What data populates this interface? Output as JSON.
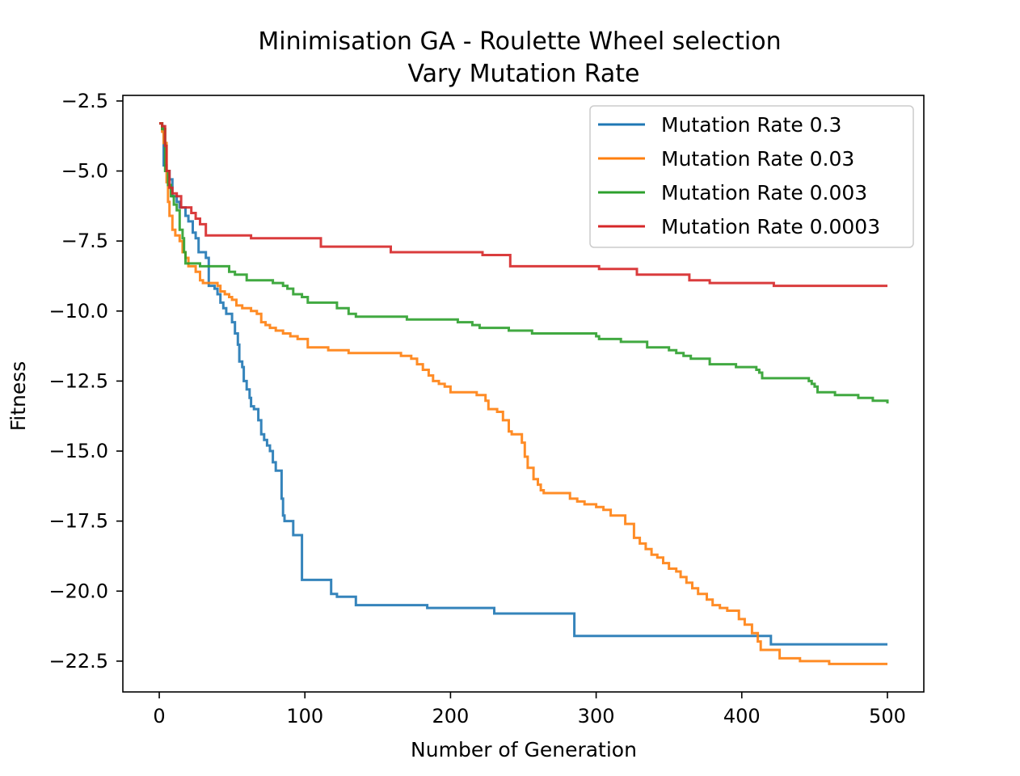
{
  "chart_data": {
    "type": "line",
    "title": "Minimisation GA - Roulette Wheel selection",
    "subtitle": "Vary Mutation Rate",
    "xlabel": "Number of Generation",
    "ylabel": "Fitness",
    "xlim": [
      -25,
      525
    ],
    "ylim": [
      -23.6,
      -2.3
    ],
    "xticks": [
      0,
      100,
      200,
      300,
      400,
      500
    ],
    "yticks": [
      -2.5,
      -5.0,
      -7.5,
      -10.0,
      -12.5,
      -15.0,
      -17.5,
      -20.0,
      -22.5
    ],
    "grid": false,
    "legend_position": "top-right",
    "series": [
      {
        "name": "Mutation Rate 0.3",
        "color": "#1f77b4",
        "points": [
          [
            0,
            -3.3
          ],
          [
            2,
            -3.4
          ],
          [
            3,
            -4.8
          ],
          [
            5,
            -5.0
          ],
          [
            7,
            -5.3
          ],
          [
            9,
            -5.9
          ],
          [
            12,
            -6.1
          ],
          [
            14,
            -6.3
          ],
          [
            18,
            -6.6
          ],
          [
            20,
            -6.8
          ],
          [
            23,
            -7.2
          ],
          [
            25,
            -7.4
          ],
          [
            27,
            -7.9
          ],
          [
            30,
            -7.9
          ],
          [
            32,
            -8.1
          ],
          [
            34,
            -9.1
          ],
          [
            38,
            -9.2
          ],
          [
            40,
            -9.4
          ],
          [
            42,
            -9.7
          ],
          [
            44,
            -9.9
          ],
          [
            46,
            -10.1
          ],
          [
            48,
            -10.1
          ],
          [
            50,
            -10.4
          ],
          [
            52,
            -10.8
          ],
          [
            54,
            -11.2
          ],
          [
            55,
            -11.8
          ],
          [
            57,
            -12.0
          ],
          [
            58,
            -12.5
          ],
          [
            60,
            -12.8
          ],
          [
            62,
            -13.1
          ],
          [
            63,
            -13.4
          ],
          [
            65,
            -13.5
          ],
          [
            68,
            -13.9
          ],
          [
            70,
            -14.4
          ],
          [
            72,
            -14.6
          ],
          [
            74,
            -14.8
          ],
          [
            76,
            -15.0
          ],
          [
            78,
            -15.4
          ],
          [
            80,
            -15.7
          ],
          [
            82,
            -15.7
          ],
          [
            84,
            -16.7
          ],
          [
            85,
            -17.3
          ],
          [
            86,
            -17.5
          ],
          [
            90,
            -17.5
          ],
          [
            92,
            -18.0
          ],
          [
            96,
            -18.0
          ],
          [
            98,
            -19.6
          ],
          [
            117,
            -19.6
          ],
          [
            118,
            -20.1
          ],
          [
            120,
            -20.1
          ],
          [
            122,
            -20.2
          ],
          [
            134,
            -20.2
          ],
          [
            135,
            -20.5
          ],
          [
            183,
            -20.5
          ],
          [
            184,
            -20.6
          ],
          [
            228,
            -20.6
          ],
          [
            230,
            -20.8
          ],
          [
            284,
            -20.8
          ],
          [
            285,
            -21.6
          ],
          [
            418,
            -21.6
          ],
          [
            420,
            -21.9
          ],
          [
            500,
            -21.9
          ]
        ]
      },
      {
        "name": "Mutation Rate 0.03",
        "color": "#ff7f0e",
        "points": [
          [
            0,
            -3.3
          ],
          [
            2,
            -3.6
          ],
          [
            3,
            -4.0
          ],
          [
            5,
            -5.4
          ],
          [
            6,
            -6.1
          ],
          [
            7,
            -6.6
          ],
          [
            9,
            -7.1
          ],
          [
            11,
            -7.3
          ],
          [
            14,
            -7.5
          ],
          [
            16,
            -7.9
          ],
          [
            18,
            -8.1
          ],
          [
            20,
            -8.4
          ],
          [
            23,
            -8.4
          ],
          [
            25,
            -8.6
          ],
          [
            28,
            -8.9
          ],
          [
            30,
            -9.0
          ],
          [
            36,
            -9.0
          ],
          [
            40,
            -9.1
          ],
          [
            42,
            -9.3
          ],
          [
            45,
            -9.4
          ],
          [
            48,
            -9.5
          ],
          [
            50,
            -9.6
          ],
          [
            53,
            -9.8
          ],
          [
            57,
            -9.9
          ],
          [
            63,
            -10.0
          ],
          [
            67,
            -10.1
          ],
          [
            70,
            -10.4
          ],
          [
            73,
            -10.5
          ],
          [
            76,
            -10.6
          ],
          [
            80,
            -10.7
          ],
          [
            85,
            -10.8
          ],
          [
            90,
            -10.9
          ],
          [
            95,
            -11.0
          ],
          [
            100,
            -11.0
          ],
          [
            102,
            -11.3
          ],
          [
            113,
            -11.3
          ],
          [
            116,
            -11.4
          ],
          [
            130,
            -11.5
          ],
          [
            162,
            -11.5
          ],
          [
            166,
            -11.6
          ],
          [
            173,
            -11.7
          ],
          [
            177,
            -11.9
          ],
          [
            181,
            -12.1
          ],
          [
            185,
            -12.3
          ],
          [
            188,
            -12.5
          ],
          [
            192,
            -12.6
          ],
          [
            196,
            -12.7
          ],
          [
            200,
            -12.9
          ],
          [
            205,
            -12.9
          ],
          [
            212,
            -12.9
          ],
          [
            218,
            -13.0
          ],
          [
            224,
            -13.2
          ],
          [
            226,
            -13.5
          ],
          [
            232,
            -13.6
          ],
          [
            236,
            -13.9
          ],
          [
            240,
            -14.3
          ],
          [
            242,
            -14.4
          ],
          [
            249,
            -14.7
          ],
          [
            251,
            -15.2
          ],
          [
            253,
            -15.6
          ],
          [
            257,
            -16.0
          ],
          [
            260,
            -16.2
          ],
          [
            262,
            -16.4
          ],
          [
            264,
            -16.5
          ],
          [
            267,
            -16.5
          ],
          [
            280,
            -16.5
          ],
          [
            282,
            -16.7
          ],
          [
            287,
            -16.8
          ],
          [
            292,
            -16.9
          ],
          [
            300,
            -17.0
          ],
          [
            305,
            -17.1
          ],
          [
            310,
            -17.3
          ],
          [
            320,
            -17.6
          ],
          [
            326,
            -18.1
          ],
          [
            330,
            -18.3
          ],
          [
            334,
            -18.5
          ],
          [
            338,
            -18.7
          ],
          [
            342,
            -18.8
          ],
          [
            346,
            -19.0
          ],
          [
            350,
            -19.2
          ],
          [
            355,
            -19.3
          ],
          [
            358,
            -19.5
          ],
          [
            362,
            -19.7
          ],
          [
            366,
            -19.9
          ],
          [
            370,
            -20.1
          ],
          [
            376,
            -20.3
          ],
          [
            380,
            -20.5
          ],
          [
            385,
            -20.6
          ],
          [
            390,
            -20.7
          ],
          [
            398,
            -21.0
          ],
          [
            402,
            -21.2
          ],
          [
            407,
            -21.5
          ],
          [
            411,
            -21.8
          ],
          [
            413,
            -22.1
          ],
          [
            424,
            -22.1
          ],
          [
            426,
            -22.4
          ],
          [
            440,
            -22.5
          ],
          [
            460,
            -22.6
          ],
          [
            500,
            -22.6
          ]
        ]
      },
      {
        "name": "Mutation Rate 0.003",
        "color": "#2ca02c",
        "points": [
          [
            0,
            -3.3
          ],
          [
            2,
            -3.5
          ],
          [
            4,
            -5.0
          ],
          [
            6,
            -5.5
          ],
          [
            8,
            -5.9
          ],
          [
            10,
            -6.2
          ],
          [
            12,
            -6.4
          ],
          [
            14,
            -7.1
          ],
          [
            16,
            -7.4
          ],
          [
            17,
            -7.9
          ],
          [
            18,
            -8.3
          ],
          [
            22,
            -8.3
          ],
          [
            28,
            -8.4
          ],
          [
            45,
            -8.4
          ],
          [
            48,
            -8.6
          ],
          [
            52,
            -8.7
          ],
          [
            55,
            -8.7
          ],
          [
            60,
            -8.9
          ],
          [
            72,
            -8.9
          ],
          [
            78,
            -9.0
          ],
          [
            85,
            -9.1
          ],
          [
            88,
            -9.2
          ],
          [
            92,
            -9.4
          ],
          [
            98,
            -9.5
          ],
          [
            102,
            -9.7
          ],
          [
            118,
            -9.7
          ],
          [
            122,
            -9.9
          ],
          [
            128,
            -9.9
          ],
          [
            130,
            -10.1
          ],
          [
            135,
            -10.2
          ],
          [
            165,
            -10.2
          ],
          [
            170,
            -10.3
          ],
          [
            200,
            -10.3
          ],
          [
            205,
            -10.4
          ],
          [
            215,
            -10.5
          ],
          [
            220,
            -10.6
          ],
          [
            238,
            -10.6
          ],
          [
            240,
            -10.7
          ],
          [
            252,
            -10.7
          ],
          [
            256,
            -10.8
          ],
          [
            292,
            -10.8
          ],
          [
            300,
            -10.9
          ],
          [
            302,
            -11.0
          ],
          [
            315,
            -11.0
          ],
          [
            317,
            -11.1
          ],
          [
            332,
            -11.1
          ],
          [
            335,
            -11.3
          ],
          [
            350,
            -11.4
          ],
          [
            355,
            -11.5
          ],
          [
            360,
            -11.6
          ],
          [
            365,
            -11.7
          ],
          [
            376,
            -11.7
          ],
          [
            378,
            -11.9
          ],
          [
            385,
            -11.9
          ],
          [
            394,
            -11.9
          ],
          [
            396,
            -12.0
          ],
          [
            402,
            -12.0
          ],
          [
            410,
            -12.1
          ],
          [
            412,
            -12.2
          ],
          [
            414,
            -12.4
          ],
          [
            440,
            -12.4
          ],
          [
            446,
            -12.5
          ],
          [
            448,
            -12.6
          ],
          [
            450,
            -12.7
          ],
          [
            452,
            -12.9
          ],
          [
            460,
            -12.9
          ],
          [
            464,
            -13.0
          ],
          [
            476,
            -13.0
          ],
          [
            480,
            -13.1
          ],
          [
            488,
            -13.1
          ],
          [
            490,
            -13.2
          ],
          [
            500,
            -13.3
          ]
        ]
      },
      {
        "name": "Mutation Rate 0.0003",
        "color": "#d62728",
        "points": [
          [
            0,
            -3.3
          ],
          [
            2,
            -3.4
          ],
          [
            4,
            -4.1
          ],
          [
            5,
            -5.0
          ],
          [
            7,
            -5.6
          ],
          [
            9,
            -5.8
          ],
          [
            12,
            -5.9
          ],
          [
            15,
            -6.3
          ],
          [
            20,
            -6.3
          ],
          [
            22,
            -6.5
          ],
          [
            25,
            -6.7
          ],
          [
            28,
            -6.9
          ],
          [
            31,
            -6.9
          ],
          [
            32,
            -7.3
          ],
          [
            50,
            -7.3
          ],
          [
            60,
            -7.3
          ],
          [
            63,
            -7.4
          ],
          [
            110,
            -7.4
          ],
          [
            111,
            -7.7
          ],
          [
            158,
            -7.7
          ],
          [
            159,
            -7.9
          ],
          [
            200,
            -7.9
          ],
          [
            220,
            -7.9
          ],
          [
            222,
            -8.0
          ],
          [
            240,
            -8.0
          ],
          [
            241,
            -8.4
          ],
          [
            300,
            -8.4
          ],
          [
            302,
            -8.5
          ],
          [
            326,
            -8.5
          ],
          [
            328,
            -8.7
          ],
          [
            362,
            -8.7
          ],
          [
            364,
            -8.9
          ],
          [
            377,
            -8.9
          ],
          [
            378,
            -9.0
          ],
          [
            420,
            -9.0
          ],
          [
            422,
            -9.1
          ],
          [
            500,
            -9.1
          ]
        ]
      }
    ]
  }
}
